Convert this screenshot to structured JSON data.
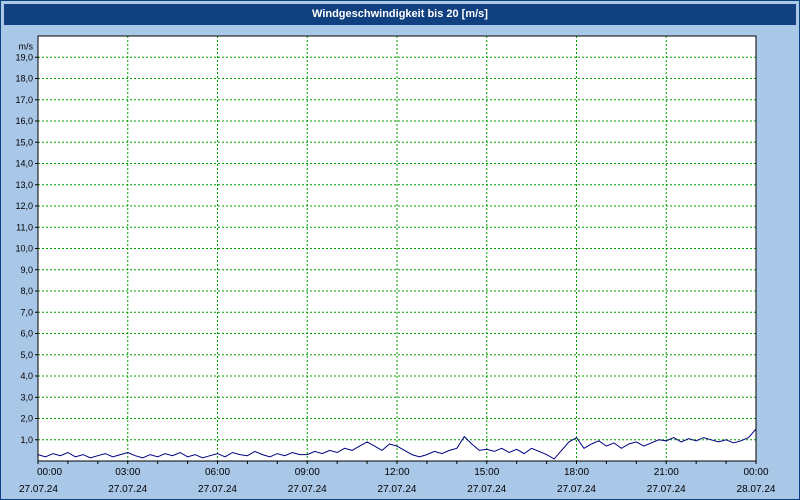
{
  "title": "Windgeschwindigkeit bis 20 [m/s]",
  "colors": {
    "titlebar_bg": "#10407f",
    "frame_bg": "#a9c7e7",
    "plot_bg": "#ffffff",
    "grid": "#00a000",
    "line": "#000080",
    "axis_text": "#000000",
    "plot_border": "#000000"
  },
  "chart_data": {
    "type": "line",
    "title": "Windgeschwindigkeit bis 20 [m/s]",
    "ylabel": "m/s",
    "ylim": [
      0,
      20
    ],
    "y_tick_step": 1,
    "y_tick_labels": [
      "1,0",
      "2,0",
      "3,0",
      "4,0",
      "5,0",
      "6,0",
      "7,0",
      "8,0",
      "9,0",
      "10,0",
      "11,0",
      "12,0",
      "13,0",
      "14,0",
      "15,0",
      "16,0",
      "17,0",
      "18,0",
      "19,0"
    ],
    "x_hours_range": [
      0,
      24
    ],
    "x_ticks": [
      {
        "hour": 0,
        "time": "00:00",
        "date": "27.07.24"
      },
      {
        "hour": 3,
        "time": "03:00",
        "date": "27.07.24"
      },
      {
        "hour": 6,
        "time": "06:00",
        "date": "27.07.24"
      },
      {
        "hour": 9,
        "time": "09:00",
        "date": "27.07.24"
      },
      {
        "hour": 12,
        "time": "12:00",
        "date": "27.07.24"
      },
      {
        "hour": 15,
        "time": "15:00",
        "date": "27.07.24"
      },
      {
        "hour": 18,
        "time": "18:00",
        "date": "27.07.24"
      },
      {
        "hour": 21,
        "time": "21:00",
        "date": "27.07.24"
      },
      {
        "hour": 24,
        "time": "00:00",
        "date": "28.07.24"
      }
    ],
    "grid": {
      "show": true,
      "color": "#00a000",
      "style": "dashed"
    },
    "legend": "none",
    "series": [
      {
        "name": "Windgeschwindigkeit",
        "unit": "m/s",
        "color": "#000080",
        "start_hour": 0,
        "interval_hours": 0.25,
        "values": [
          0.3,
          0.2,
          0.35,
          0.25,
          0.4,
          0.2,
          0.3,
          0.15,
          0.25,
          0.35,
          0.2,
          0.3,
          0.4,
          0.25,
          0.15,
          0.3,
          0.2,
          0.35,
          0.25,
          0.4,
          0.2,
          0.3,
          0.15,
          0.25,
          0.35,
          0.2,
          0.4,
          0.3,
          0.25,
          0.45,
          0.3,
          0.2,
          0.35,
          0.25,
          0.4,
          0.3,
          0.3,
          0.45,
          0.35,
          0.5,
          0.4,
          0.6,
          0.5,
          0.7,
          0.9,
          0.7,
          0.5,
          0.8,
          0.7,
          0.5,
          0.3,
          0.2,
          0.3,
          0.45,
          0.35,
          0.5,
          0.6,
          1.15,
          0.8,
          0.5,
          0.55,
          0.45,
          0.6,
          0.4,
          0.55,
          0.35,
          0.6,
          0.45,
          0.3,
          0.1,
          0.5,
          0.9,
          1.1,
          0.6,
          0.8,
          0.95,
          0.7,
          0.85,
          0.6,
          0.8,
          0.9,
          0.7,
          0.85,
          1.0,
          0.95,
          1.1,
          0.9,
          1.05,
          0.95,
          1.1,
          1.0,
          0.9,
          1.0,
          0.85,
          0.95,
          1.1,
          1.5
        ]
      }
    ]
  }
}
